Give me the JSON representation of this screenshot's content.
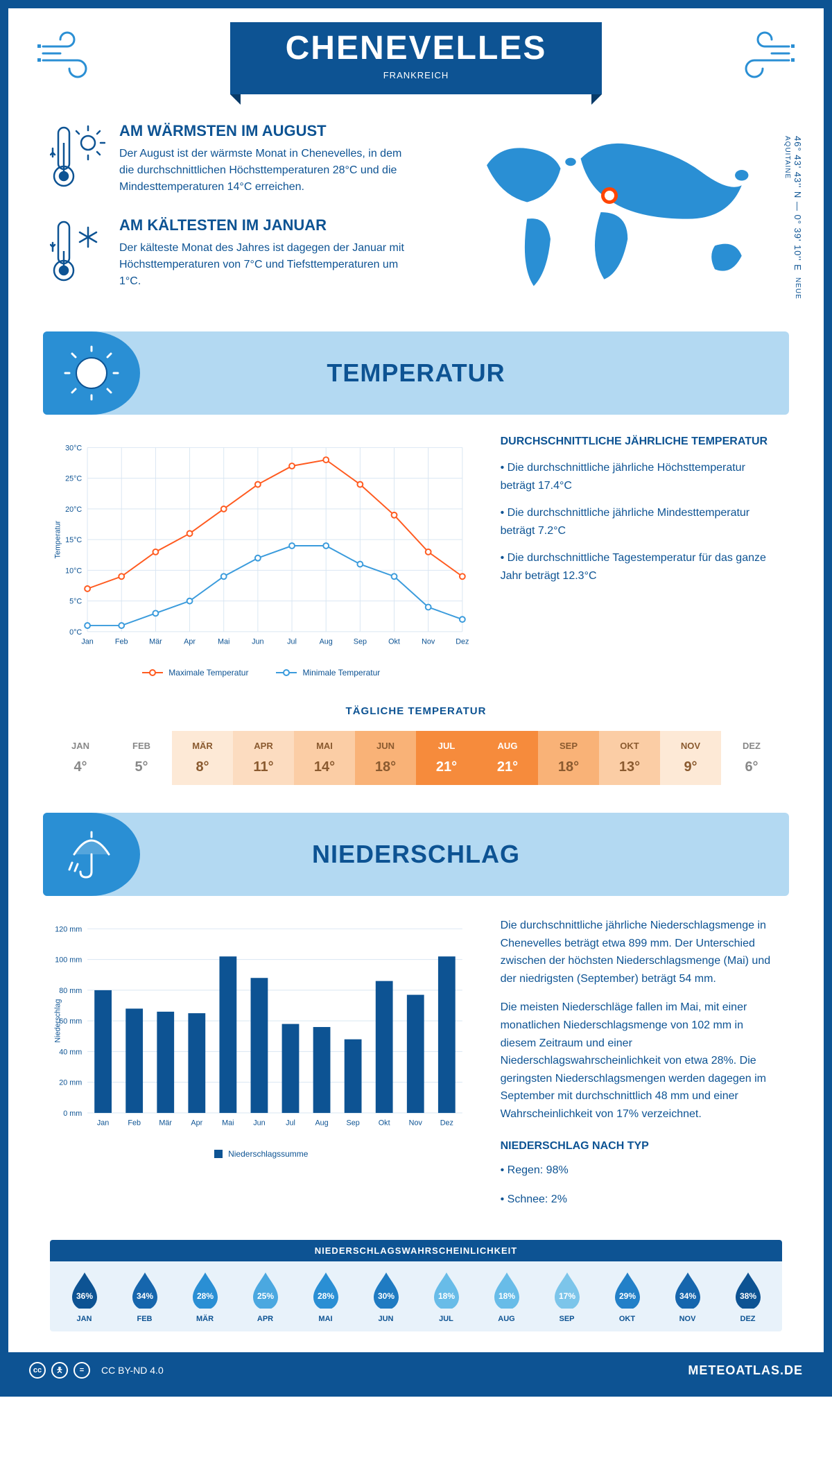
{
  "header": {
    "title": "CHENEVELLES",
    "subtitle": "FRANKREICH"
  },
  "coords": "46° 43' 43'' N — 0° 39' 10'' E",
  "region": "NEUE AQUITAINE",
  "marker_pos": {
    "left_pct": 46,
    "top_pct": 36
  },
  "facts": {
    "warm": {
      "title": "AM WÄRMSTEN IM AUGUST",
      "text": "Der August ist der wärmste Monat in Chenevelles, in dem die durchschnittlichen Höchsttemperaturen 28°C und die Mindesttemperaturen 14°C erreichen."
    },
    "cold": {
      "title": "AM KÄLTESTEN IM JANUAR",
      "text": "Der kälteste Monat des Jahres ist dagegen der Januar mit Höchsttemperaturen von 7°C und Tiefsttemperaturen um 1°C."
    }
  },
  "temp_section": {
    "title": "TEMPERATUR",
    "chart": {
      "type": "line",
      "months": [
        "Jan",
        "Feb",
        "Mär",
        "Apr",
        "Mai",
        "Jun",
        "Jul",
        "Aug",
        "Sep",
        "Okt",
        "Nov",
        "Dez"
      ],
      "max_values": [
        7,
        9,
        13,
        16,
        20,
        24,
        27,
        28,
        24,
        19,
        13,
        9
      ],
      "min_values": [
        1,
        1,
        3,
        5,
        9,
        12,
        14,
        14,
        11,
        9,
        4,
        2
      ],
      "max_color": "#ff5a1f",
      "min_color": "#3a9bdc",
      "grid_color": "#d9e6f2",
      "axis_color": "#0d5393",
      "ylim": [
        0,
        30
      ],
      "ytick_step": 5,
      "ylabel": "Temperatur",
      "legend_max": "Maximale Temperatur",
      "legend_min": "Minimale Temperatur",
      "line_width": 2,
      "marker_size": 4
    },
    "text": {
      "heading": "DURCHSCHNITTLICHE JÄHRLICHE TEMPERATUR",
      "b1": "• Die durchschnittliche jährliche Höchsttemperatur beträgt 17.4°C",
      "b2": "• Die durchschnittliche jährliche Mindesttemperatur beträgt 7.2°C",
      "b3": "• Die durchschnittliche Tagestemperatur für das ganze Jahr beträgt 12.3°C"
    },
    "daily": {
      "heading": "TÄGLICHE TEMPERATUR",
      "months": [
        "JAN",
        "FEB",
        "MÄR",
        "APR",
        "MAI",
        "JUN",
        "JUL",
        "AUG",
        "SEP",
        "OKT",
        "NOV",
        "DEZ"
      ],
      "values": [
        "4°",
        "5°",
        "8°",
        "11°",
        "14°",
        "18°",
        "21°",
        "21°",
        "18°",
        "13°",
        "9°",
        "6°"
      ],
      "colors": [
        "#ffffff",
        "#ffffff",
        "#fde9d6",
        "#fcdcc0",
        "#fbcda5",
        "#f9b277",
        "#f68b3c",
        "#f68b3c",
        "#f9b277",
        "#fbcda5",
        "#fde9d6",
        "#ffffff"
      ],
      "text_colors": [
        "#888",
        "#888",
        "#8a5a2f",
        "#8a5a2f",
        "#8a5a2f",
        "#8a5a2f",
        "#fff",
        "#fff",
        "#8a5a2f",
        "#8a5a2f",
        "#8a5a2f",
        "#888"
      ]
    }
  },
  "precip_section": {
    "title": "NIEDERSCHLAG",
    "chart": {
      "type": "bar",
      "months": [
        "Jan",
        "Feb",
        "Mär",
        "Apr",
        "Mai",
        "Jun",
        "Jul",
        "Aug",
        "Sep",
        "Okt",
        "Nov",
        "Dez"
      ],
      "values": [
        80,
        68,
        66,
        65,
        102,
        88,
        58,
        56,
        48,
        86,
        77,
        102
      ],
      "bar_color": "#0d5393",
      "grid_color": "#d9e6f2",
      "axis_color": "#0d5393",
      "ylim": [
        0,
        120
      ],
      "ytick_step": 20,
      "ylabel": "Niederschlag",
      "legend": "Niederschlagssumme",
      "bar_width": 0.55
    },
    "text": {
      "p1": "Die durchschnittliche jährliche Niederschlagsmenge in Chenevelles beträgt etwa 899 mm. Der Unterschied zwischen der höchsten Niederschlagsmenge (Mai) und der niedrigsten (September) beträgt 54 mm.",
      "p2": "Die meisten Niederschläge fallen im Mai, mit einer monatlichen Niederschlagsmenge von 102 mm in diesem Zeitraum und einer Niederschlagswahrscheinlichkeit von etwa 28%. Die geringsten Niederschlagsmengen werden dagegen im September mit durchschnittlich 48 mm und einer Wahrscheinlichkeit von 17% verzeichnet.",
      "type_heading": "NIEDERSCHLAG NACH TYP",
      "rain": "• Regen: 98%",
      "snow": "• Schnee: 2%"
    },
    "prob": {
      "heading": "NIEDERSCHLAGSWAHRSCHEINLICHKEIT",
      "months": [
        "JAN",
        "FEB",
        "MÄR",
        "APR",
        "MAI",
        "JUN",
        "JUL",
        "AUG",
        "SEP",
        "OKT",
        "NOV",
        "DEZ"
      ],
      "values": [
        "36%",
        "34%",
        "28%",
        "25%",
        "28%",
        "30%",
        "18%",
        "18%",
        "17%",
        "29%",
        "34%",
        "38%"
      ],
      "colors": [
        "#0d5393",
        "#1666ad",
        "#2a8fd4",
        "#4ba8e0",
        "#2a8fd4",
        "#1f7bc2",
        "#68bce8",
        "#68bce8",
        "#7cc5ea",
        "#2280c8",
        "#1666ad",
        "#0d5393"
      ]
    }
  },
  "footer": {
    "license": "CC BY-ND 4.0",
    "site": "METEOATLAS.DE"
  },
  "colors": {
    "primary": "#0d5393",
    "light_blue": "#b3d9f2",
    "mid_blue": "#2a8fd4"
  }
}
